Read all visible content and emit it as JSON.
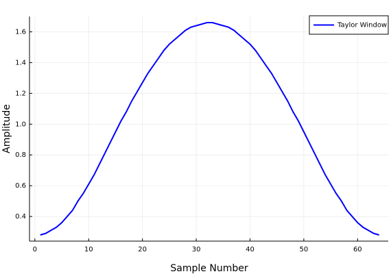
{
  "chart_data": {
    "type": "line",
    "x_label": "Sample Number",
    "y_label": "Amplitude",
    "x": [
      1,
      2,
      3,
      4,
      5,
      6,
      7,
      8,
      9,
      10,
      11,
      12,
      13,
      14,
      15,
      16,
      17,
      18,
      19,
      20,
      21,
      22,
      23,
      24,
      25,
      26,
      27,
      28,
      29,
      30,
      31,
      32,
      33,
      34,
      35,
      36,
      37,
      38,
      39,
      40,
      41,
      42,
      43,
      44,
      45,
      46,
      47,
      48,
      49,
      50,
      51,
      52,
      53,
      54,
      55,
      56,
      57,
      58,
      59,
      60,
      61,
      62,
      63,
      64
    ],
    "series": [
      {
        "name": "Taylor Window",
        "color": "#0000ff",
        "values": [
          0.28,
          0.29,
          0.31,
          0.33,
          0.36,
          0.4,
          0.44,
          0.5,
          0.55,
          0.61,
          0.67,
          0.74,
          0.81,
          0.88,
          0.95,
          1.02,
          1.08,
          1.15,
          1.21,
          1.27,
          1.33,
          1.38,
          1.43,
          1.48,
          1.52,
          1.55,
          1.58,
          1.61,
          1.63,
          1.64,
          1.65,
          1.66,
          1.66,
          1.65,
          1.64,
          1.63,
          1.61,
          1.58,
          1.55,
          1.52,
          1.48,
          1.43,
          1.38,
          1.33,
          1.27,
          1.21,
          1.15,
          1.08,
          1.02,
          0.95,
          0.88,
          0.81,
          0.74,
          0.67,
          0.61,
          0.55,
          0.5,
          0.44,
          0.4,
          0.36,
          0.33,
          0.31,
          0.29,
          0.28
        ]
      }
    ],
    "xlim": [
      -1,
      65.7
    ],
    "ylim": [
      0.24,
      1.7
    ],
    "xticks": [
      0,
      10,
      20,
      30,
      40,
      50,
      60
    ],
    "yticks": [
      0.4,
      0.6,
      0.8,
      {
        "value": 1,
        "label": "1.0"
      },
      1.2,
      1.4,
      1.6
    ],
    "grid": true,
    "legend": "top-right"
  }
}
